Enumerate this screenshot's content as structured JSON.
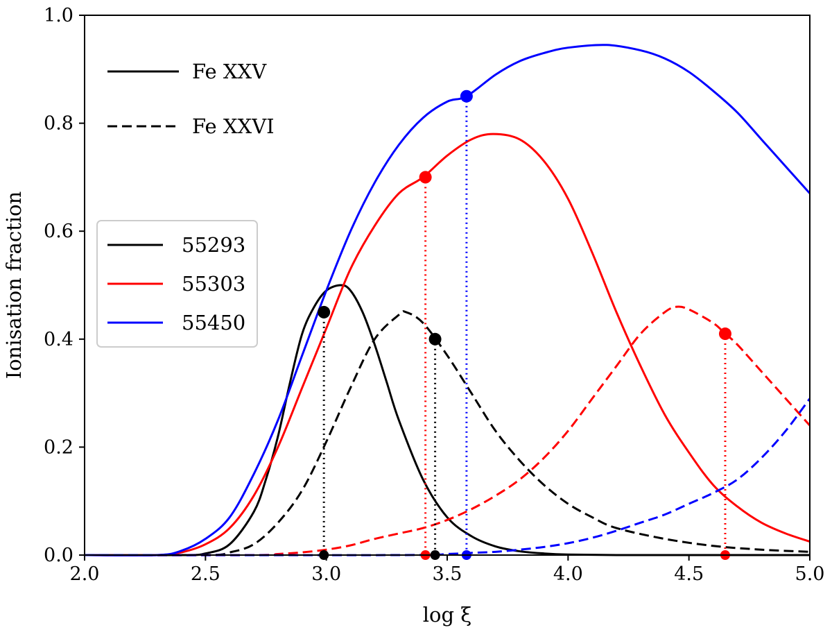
{
  "chart_data": {
    "type": "line",
    "title": "",
    "xlabel": "log ξ",
    "ylabel": "Ionisation fraction",
    "xlim": [
      2.0,
      5.0
    ],
    "ylim": [
      0.0,
      1.0
    ],
    "xticks": [
      "2.0",
      "2.5",
      "3.0",
      "3.5",
      "4.0",
      "4.5",
      "5.0"
    ],
    "yticks": [
      "0.0",
      "0.2",
      "0.4",
      "0.6",
      "0.8",
      "1.0"
    ],
    "grid": false,
    "style_legend": {
      "placement": "top-left",
      "entries": [
        {
          "label": "Fe XXV",
          "dash": "solid"
        },
        {
          "label": "Fe XXVI",
          "dash": "dashed"
        }
      ]
    },
    "color_legend": {
      "placement": "center-left",
      "entries": [
        {
          "label": "55293",
          "color": "#000000"
        },
        {
          "label": "55303",
          "color": "#ff0000"
        },
        {
          "label": "55450",
          "color": "#0000ff"
        }
      ]
    },
    "series": [
      {
        "name": "55293 Fe XXV",
        "color": "#000000",
        "dash": "solid",
        "x": [
          2.0,
          2.4,
          2.5,
          2.6,
          2.7,
          2.75,
          2.8,
          2.85,
          2.9,
          2.95,
          3.0,
          3.06,
          3.1,
          3.15,
          3.2,
          3.25,
          3.3,
          3.4,
          3.5,
          3.6,
          3.7,
          3.8,
          3.9,
          4.0,
          4.2,
          4.5,
          5.0
        ],
        "y": [
          0.0,
          0.0,
          0.003,
          0.02,
          0.08,
          0.14,
          0.22,
          0.32,
          0.41,
          0.46,
          0.49,
          0.5,
          0.49,
          0.45,
          0.39,
          0.32,
          0.25,
          0.14,
          0.07,
          0.035,
          0.016,
          0.007,
          0.003,
          0.001,
          0.0,
          0.0,
          0.0
        ]
      },
      {
        "name": "55293 Fe XXVI",
        "color": "#000000",
        "dash": "dashed",
        "x": [
          2.0,
          2.5,
          2.6,
          2.7,
          2.8,
          2.9,
          3.0,
          3.1,
          3.2,
          3.3,
          3.33,
          3.4,
          3.5,
          3.6,
          3.7,
          3.8,
          3.9,
          4.0,
          4.1,
          4.2,
          4.4,
          4.6,
          4.8,
          5.0
        ],
        "y": [
          0.0,
          0.0,
          0.005,
          0.02,
          0.06,
          0.12,
          0.21,
          0.31,
          0.4,
          0.445,
          0.45,
          0.43,
          0.37,
          0.3,
          0.23,
          0.175,
          0.13,
          0.095,
          0.07,
          0.05,
          0.03,
          0.017,
          0.01,
          0.006
        ]
      },
      {
        "name": "55303 Fe XXV",
        "color": "#ff0000",
        "dash": "solid",
        "x": [
          2.0,
          2.3,
          2.4,
          2.5,
          2.6,
          2.7,
          2.8,
          2.9,
          3.0,
          3.1,
          3.2,
          3.3,
          3.4,
          3.5,
          3.6,
          3.69,
          3.8,
          3.9,
          4.0,
          4.1,
          4.2,
          4.3,
          4.4,
          4.5,
          4.6,
          4.7,
          4.8,
          4.9,
          5.0
        ],
        "y": [
          0.0,
          0.0,
          0.005,
          0.02,
          0.05,
          0.11,
          0.2,
          0.31,
          0.42,
          0.53,
          0.61,
          0.67,
          0.7,
          0.74,
          0.77,
          0.78,
          0.77,
          0.73,
          0.66,
          0.56,
          0.45,
          0.35,
          0.26,
          0.19,
          0.13,
          0.09,
          0.06,
          0.04,
          0.025
        ]
      },
      {
        "name": "55303 Fe XXVI",
        "color": "#ff0000",
        "dash": "dashed",
        "x": [
          2.0,
          2.7,
          2.8,
          2.9,
          3.0,
          3.1,
          3.2,
          3.3,
          3.4,
          3.5,
          3.6,
          3.7,
          3.8,
          3.9,
          4.0,
          4.1,
          4.2,
          4.3,
          4.4,
          4.45,
          4.5,
          4.6,
          4.65,
          4.7,
          4.8,
          4.9,
          5.0
        ],
        "y": [
          0.0,
          0.0,
          0.002,
          0.005,
          0.01,
          0.018,
          0.03,
          0.04,
          0.05,
          0.065,
          0.085,
          0.11,
          0.14,
          0.18,
          0.23,
          0.29,
          0.35,
          0.41,
          0.45,
          0.46,
          0.455,
          0.43,
          0.41,
          0.39,
          0.34,
          0.29,
          0.24
        ]
      },
      {
        "name": "55450 Fe XXV",
        "color": "#0000ff",
        "dash": "solid",
        "x": [
          2.0,
          2.3,
          2.4,
          2.5,
          2.6,
          2.7,
          2.8,
          2.9,
          3.0,
          3.1,
          3.2,
          3.3,
          3.4,
          3.5,
          3.58,
          3.7,
          3.8,
          3.9,
          4.0,
          4.16,
          4.3,
          4.4,
          4.5,
          4.6,
          4.7,
          4.8,
          4.9,
          5.0
        ],
        "y": [
          0.0,
          0.0,
          0.008,
          0.03,
          0.07,
          0.15,
          0.25,
          0.37,
          0.49,
          0.6,
          0.69,
          0.76,
          0.81,
          0.84,
          0.85,
          0.89,
          0.915,
          0.93,
          0.94,
          0.945,
          0.935,
          0.92,
          0.895,
          0.86,
          0.82,
          0.77,
          0.72,
          0.67
        ]
      },
      {
        "name": "55450 Fe XXVI",
        "color": "#0000ff",
        "dash": "dashed",
        "x": [
          2.0,
          3.3,
          3.5,
          3.6,
          3.7,
          3.8,
          3.9,
          4.0,
          4.1,
          4.2,
          4.3,
          4.4,
          4.5,
          4.6,
          4.7,
          4.8,
          4.9,
          5.0
        ],
        "y": [
          0.0,
          0.0,
          0.002,
          0.004,
          0.006,
          0.01,
          0.015,
          0.022,
          0.032,
          0.045,
          0.06,
          0.075,
          0.095,
          0.115,
          0.14,
          0.18,
          0.23,
          0.29
        ]
      }
    ],
    "markers": [
      {
        "name": "55293-fexxv",
        "x": 2.99,
        "y": 0.45,
        "color": "#000000"
      },
      {
        "name": "55293-fexxvi",
        "x": 3.45,
        "y": 0.4,
        "color": "#000000"
      },
      {
        "name": "55303-fexxv",
        "x": 3.41,
        "y": 0.7,
        "color": "#ff0000"
      },
      {
        "name": "55303-fexxvi",
        "x": 4.65,
        "y": 0.41,
        "color": "#ff0000"
      },
      {
        "name": "55450-fexxv",
        "x": 3.58,
        "y": 0.85,
        "color": "#0000ff"
      }
    ]
  }
}
